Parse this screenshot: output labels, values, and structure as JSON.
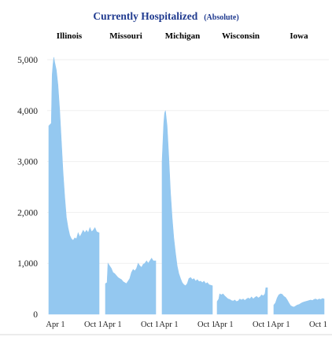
{
  "chart_data": {
    "type": "area",
    "title": "Currently Hospitalized",
    "subtitle": "(Absolute)",
    "title_color": "#1f3a8f",
    "fill_color": "#94c8f0",
    "ylim": [
      0,
      5000
    ],
    "y_ticks": [
      0,
      1000,
      2000,
      3000,
      4000,
      5000
    ],
    "y_tick_labels": [
      "0",
      "1,000",
      "2,000",
      "3,000",
      "4,000",
      "5,000"
    ],
    "x_tick_labels": [
      "Apr 1",
      "Oct 1"
    ],
    "gridlines": true,
    "panels": [
      {
        "name": "Illinois",
        "points": [
          [
            0,
            3700
          ],
          [
            3,
            3750
          ],
          [
            4,
            4700
          ],
          [
            5,
            4900
          ],
          [
            6,
            5050
          ],
          [
            7,
            4950
          ],
          [
            9,
            4800
          ],
          [
            11,
            4500
          ],
          [
            13,
            4000
          ],
          [
            15,
            3400
          ],
          [
            17,
            2800
          ],
          [
            19,
            2300
          ],
          [
            21,
            1900
          ],
          [
            23,
            1700
          ],
          [
            25,
            1550
          ],
          [
            27,
            1480
          ],
          [
            29,
            1450
          ],
          [
            31,
            1500
          ],
          [
            33,
            1480
          ],
          [
            35,
            1600
          ],
          [
            37,
            1520
          ],
          [
            39,
            1580
          ],
          [
            41,
            1650
          ],
          [
            43,
            1600
          ],
          [
            45,
            1650
          ],
          [
            47,
            1600
          ],
          [
            49,
            1700
          ],
          [
            51,
            1620
          ],
          [
            53,
            1650
          ],
          [
            55,
            1700
          ],
          [
            57,
            1620
          ],
          [
            60,
            1600
          ]
        ]
      },
      {
        "name": "Missouri",
        "points": [
          [
            0,
            600
          ],
          [
            2,
            620
          ],
          [
            3,
            1000
          ],
          [
            5,
            950
          ],
          [
            7,
            900
          ],
          [
            9,
            820
          ],
          [
            11,
            800
          ],
          [
            13,
            760
          ],
          [
            15,
            720
          ],
          [
            17,
            700
          ],
          [
            19,
            680
          ],
          [
            21,
            640
          ],
          [
            23,
            620
          ],
          [
            25,
            600
          ],
          [
            27,
            650
          ],
          [
            29,
            700
          ],
          [
            31,
            820
          ],
          [
            33,
            880
          ],
          [
            35,
            850
          ],
          [
            37,
            900
          ],
          [
            39,
            1000
          ],
          [
            41,
            950
          ],
          [
            43,
            920
          ],
          [
            45,
            980
          ],
          [
            47,
            1000
          ],
          [
            49,
            1050
          ],
          [
            51,
            1000
          ],
          [
            53,
            1050
          ],
          [
            55,
            1100
          ],
          [
            57,
            1050
          ],
          [
            60,
            1050
          ]
        ]
      },
      {
        "name": "Michigan",
        "points": [
          [
            0,
            3000
          ],
          [
            2,
            3750
          ],
          [
            3,
            3950
          ],
          [
            4,
            4000
          ],
          [
            6,
            3700
          ],
          [
            8,
            3100
          ],
          [
            10,
            2400
          ],
          [
            12,
            1900
          ],
          [
            14,
            1500
          ],
          [
            16,
            1200
          ],
          [
            18,
            950
          ],
          [
            20,
            800
          ],
          [
            22,
            700
          ],
          [
            24,
            620
          ],
          [
            26,
            580
          ],
          [
            28,
            560
          ],
          [
            30,
            600
          ],
          [
            32,
            700
          ],
          [
            34,
            720
          ],
          [
            36,
            680
          ],
          [
            38,
            700
          ],
          [
            40,
            650
          ],
          [
            42,
            680
          ],
          [
            44,
            640
          ],
          [
            46,
            650
          ],
          [
            48,
            620
          ],
          [
            50,
            650
          ],
          [
            52,
            600
          ],
          [
            54,
            620
          ],
          [
            56,
            580
          ],
          [
            60,
            560
          ]
        ]
      },
      {
        "name": "Wisconsin",
        "points": [
          [
            0,
            250
          ],
          [
            2,
            300
          ],
          [
            3,
            400
          ],
          [
            5,
            380
          ],
          [
            7,
            400
          ],
          [
            9,
            360
          ],
          [
            11,
            330
          ],
          [
            13,
            300
          ],
          [
            15,
            290
          ],
          [
            17,
            270
          ],
          [
            19,
            260
          ],
          [
            21,
            280
          ],
          [
            23,
            250
          ],
          [
            25,
            260
          ],
          [
            27,
            300
          ],
          [
            29,
            280
          ],
          [
            31,
            300
          ],
          [
            33,
            270
          ],
          [
            35,
            300
          ],
          [
            37,
            320
          ],
          [
            39,
            300
          ],
          [
            41,
            340
          ],
          [
            43,
            300
          ],
          [
            45,
            330
          ],
          [
            47,
            350
          ],
          [
            49,
            320
          ],
          [
            51,
            340
          ],
          [
            53,
            380
          ],
          [
            55,
            360
          ],
          [
            57,
            400
          ],
          [
            58,
            520
          ],
          [
            60,
            520
          ]
        ]
      },
      {
        "name": "Iowa",
        "points": [
          [
            0,
            180
          ],
          [
            2,
            220
          ],
          [
            4,
            320
          ],
          [
            6,
            380
          ],
          [
            8,
            400
          ],
          [
            10,
            390
          ],
          [
            12,
            350
          ],
          [
            14,
            330
          ],
          [
            16,
            280
          ],
          [
            18,
            220
          ],
          [
            20,
            170
          ],
          [
            22,
            150
          ],
          [
            24,
            140
          ],
          [
            26,
            160
          ],
          [
            28,
            180
          ],
          [
            30,
            190
          ],
          [
            32,
            210
          ],
          [
            34,
            230
          ],
          [
            36,
            240
          ],
          [
            38,
            250
          ],
          [
            40,
            260
          ],
          [
            42,
            270
          ],
          [
            44,
            280
          ],
          [
            46,
            270
          ],
          [
            48,
            290
          ],
          [
            50,
            300
          ],
          [
            52,
            280
          ],
          [
            54,
            300
          ],
          [
            56,
            290
          ],
          [
            58,
            310
          ],
          [
            60,
            300
          ]
        ]
      }
    ]
  }
}
